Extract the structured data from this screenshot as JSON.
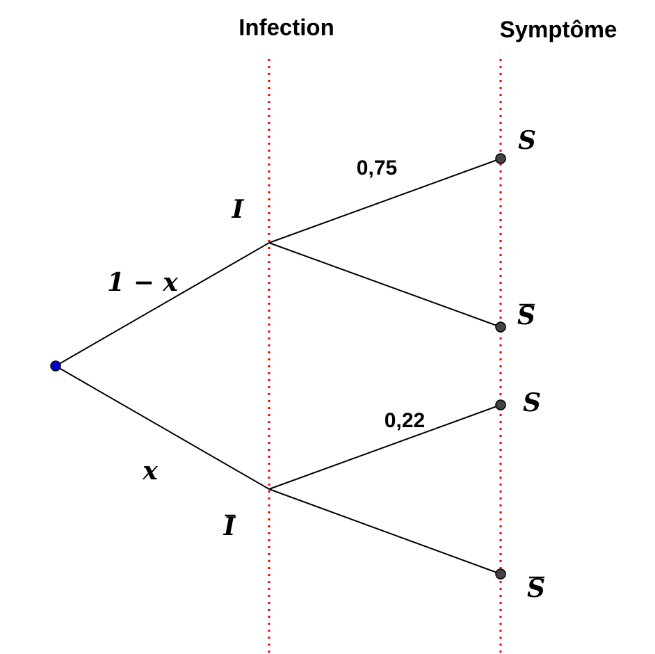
{
  "headers": [
    "Infection",
    "Symptôme"
  ],
  "nodes": [
    {
      "label": "I",
      "complement": false
    },
    {
      "label": "I",
      "complement": true
    },
    {
      "label": "S",
      "complement": false
    },
    {
      "label": "S",
      "complement": true
    },
    {
      "label": "S",
      "complement": false
    },
    {
      "label": "S",
      "complement": true
    }
  ],
  "edges": [
    {
      "label": "1 − x"
    },
    {
      "label": "x"
    },
    {
      "label": "0,75"
    },
    {
      "label": "0,22"
    }
  ]
}
